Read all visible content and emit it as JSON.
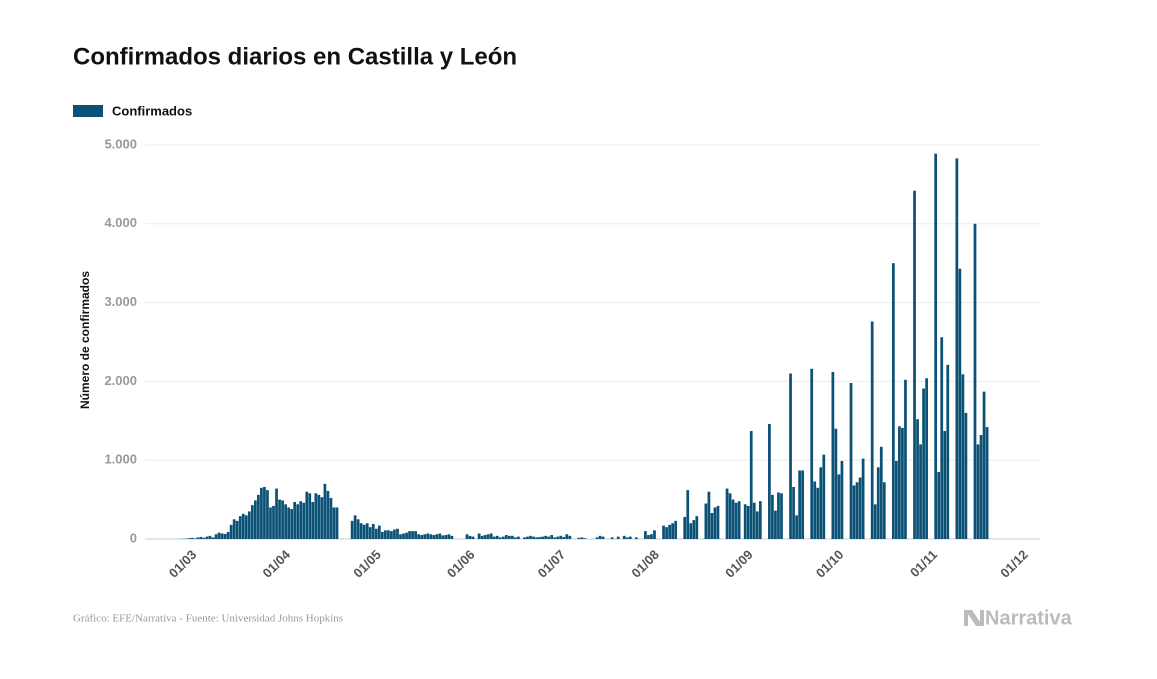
{
  "chart_data": {
    "type": "bar",
    "title": "Confirmados diarios en Castilla y León",
    "y_label": "Número de confirmados",
    "source": "Gráfico: EFE/Narrativa - Fuente: Universidad Johns Hopkins",
    "logo": "Narrativa",
    "grid": true,
    "legend": "top-left",
    "ylim": [
      0,
      5000
    ],
    "yticks": [
      0,
      {
        "value": 1000,
        "label": "1.000"
      },
      {
        "value": 2000,
        "label": "2.000"
      },
      {
        "value": 3000,
        "label": "3.000"
      },
      {
        "value": 4000,
        "label": "4.000"
      },
      {
        "value": 5000,
        "label": "5.000"
      }
    ],
    "categories": [
      null,
      null,
      null,
      null,
      null,
      null,
      null,
      null,
      null,
      null,
      null,
      null,
      null,
      null,
      "01/03",
      null,
      null,
      null,
      null,
      null,
      null,
      null,
      null,
      null,
      null,
      null,
      null,
      null,
      null,
      null,
      null,
      null,
      null,
      null,
      null,
      null,
      null,
      null,
      null,
      null,
      null,
      null,
      null,
      null,
      null,
      "01/04",
      null,
      null,
      null,
      null,
      null,
      null,
      null,
      null,
      null,
      null,
      null,
      null,
      null,
      null,
      null,
      null,
      null,
      null,
      null,
      null,
      null,
      null,
      null,
      null,
      null,
      null,
      null,
      null,
      null,
      "01/05",
      null,
      null,
      null,
      null,
      null,
      null,
      null,
      null,
      null,
      null,
      null,
      null,
      null,
      null,
      null,
      null,
      null,
      null,
      null,
      null,
      null,
      null,
      null,
      null,
      null,
      null,
      null,
      null,
      null,
      null,
      "01/06",
      null,
      null,
      null,
      null,
      null,
      null,
      null,
      null,
      null,
      null,
      null,
      null,
      null,
      null,
      null,
      null,
      null,
      null,
      null,
      null,
      null,
      null,
      null,
      null,
      null,
      null,
      null,
      null,
      null,
      "01/07",
      null,
      null,
      null,
      null,
      null,
      null,
      null,
      null,
      null,
      null,
      null,
      null,
      null,
      null,
      null,
      null,
      null,
      null,
      null,
      null,
      null,
      null,
      null,
      null,
      null,
      null,
      null,
      null,
      null,
      null,
      "01/08",
      null,
      null,
      null,
      null,
      null,
      null,
      null,
      null,
      null,
      null,
      null,
      null,
      null,
      null,
      null,
      null,
      null,
      null,
      null,
      null,
      null,
      null,
      null,
      null,
      null,
      null,
      null,
      null,
      null,
      null,
      "01/09",
      null,
      null,
      null,
      null,
      null,
      null,
      null,
      null,
      null,
      null,
      null,
      null,
      null,
      null,
      null,
      null,
      null,
      null,
      null,
      null,
      null,
      null,
      null,
      null,
      null,
      null,
      null,
      null,
      null,
      "01/10",
      null,
      null,
      null,
      null,
      null,
      null,
      null,
      null,
      null,
      null,
      null,
      null,
      null,
      null,
      null,
      null,
      null,
      null,
      null,
      null,
      null,
      null,
      null,
      null,
      null,
      null,
      null,
      null,
      null,
      null,
      "01/11",
      null,
      null,
      null,
      null,
      null,
      null,
      null,
      null,
      null,
      null,
      null,
      null,
      null,
      null,
      null,
      null,
      null,
      null,
      null,
      null,
      null,
      null,
      null,
      null,
      null,
      null,
      null,
      null,
      null,
      "01/12",
      null,
      null,
      null,
      null,
      null,
      null
    ],
    "series": [
      {
        "name": "Confirmados",
        "color": "#0b5075",
        "values": [
          null,
          null,
          null,
          null,
          null,
          null,
          null,
          null,
          null,
          null,
          null,
          2,
          3,
          5,
          10,
          15,
          8,
          20,
          25,
          15,
          30,
          40,
          20,
          60,
          80,
          70,
          65,
          90,
          180,
          250,
          230,
          290,
          320,
          300,
          350,
          430,
          490,
          560,
          650,
          660,
          620,
          400,
          420,
          640,
          500,
          490,
          440,
          400,
          380,
          470,
          440,
          480,
          460,
          600,
          580,
          470,
          580,
          560,
          530,
          700,
          610,
          520,
          400,
          400,
          null,
          null,
          null,
          null,
          230,
          300,
          250,
          200,
          180,
          200,
          150,
          190,
          130,
          170,
          90,
          110,
          110,
          100,
          120,
          130,
          60,
          70,
          80,
          100,
          100,
          100,
          60,
          50,
          60,
          70,
          60,
          50,
          60,
          70,
          45,
          50,
          60,
          40,
          null,
          null,
          null,
          null,
          60,
          40,
          30,
          null,
          70,
          40,
          50,
          60,
          70,
          30,
          40,
          20,
          30,
          50,
          40,
          40,
          20,
          30,
          null,
          20,
          30,
          40,
          30,
          20,
          25,
          30,
          40,
          30,
          50,
          20,
          30,
          40,
          25,
          60,
          40,
          null,
          null,
          15,
          20,
          10,
          null,
          null,
          null,
          20,
          40,
          30,
          null,
          null,
          20,
          null,
          30,
          null,
          40,
          20,
          30,
          null,
          20,
          null,
          null,
          100,
          50,
          60,
          110,
          null,
          null,
          170,
          150,
          180,
          200,
          230,
          null,
          null,
          280,
          620,
          200,
          240,
          290,
          null,
          null,
          450,
          600,
          330,
          400,
          420,
          null,
          null,
          640,
          580,
          500,
          460,
          480,
          null,
          440,
          420,
          1370,
          460,
          350,
          480,
          null,
          null,
          1460,
          560,
          360,
          590,
          580,
          null,
          null,
          2100,
          660,
          300,
          870,
          870,
          null,
          null,
          2160,
          730,
          650,
          910,
          1070,
          null,
          null,
          2120,
          1400,
          820,
          990,
          null,
          null,
          1980,
          680,
          720,
          780,
          1020,
          null,
          null,
          2760,
          440,
          910,
          1170,
          720,
          null,
          null,
          3500,
          990,
          1430,
          1410,
          2020,
          null,
          null,
          4420,
          1520,
          1200,
          1910,
          2040,
          null,
          null,
          4890,
          850,
          2560,
          1370,
          2210,
          null,
          null,
          4830,
          3430,
          2090,
          1600,
          null,
          null,
          4000,
          1200,
          1320,
          1870,
          1420,
          null,
          null,
          null,
          null,
          null,
          null,
          null,
          null,
          null,
          null,
          null,
          null,
          null,
          null,
          null,
          null,
          null
        ]
      }
    ]
  }
}
